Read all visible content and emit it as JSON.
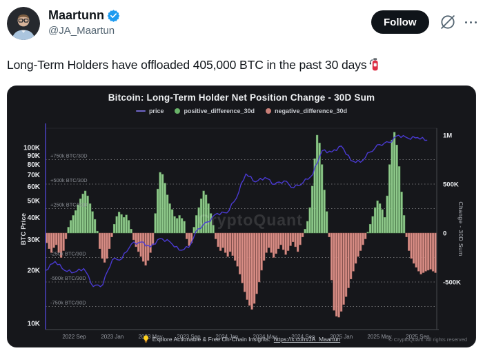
{
  "tweet": {
    "display_name": "Maartunn",
    "handle": "@JA_Maartun",
    "verified": true,
    "follow_label": "Follow",
    "body_text": "Long-Term Holders have offloaded 405,000 BTC in the past 30 days",
    "body_emoji": "fire-extinguisher"
  },
  "chart_data": {
    "type": "bar+line combo (bars on right axis, log price line on left axis)",
    "title": "Bitcoin: Long-Term Holder Net Position Change - 30D Sum",
    "watermark": "CryptoQuant",
    "colors": {
      "price": "#4a3ad2",
      "price_legend": "#6f66c9",
      "positive": "#8fc98b",
      "positive_edge": "#5f995c",
      "positive_legend": "#69b369",
      "negative": "#d88d85",
      "negative_edge": "#a5655e",
      "negative_legend": "#c97f78",
      "axis_left": "#4a40c0",
      "background": "#16171b"
    },
    "legend": [
      {
        "label": "price",
        "marker": "line"
      },
      {
        "label": "positive_difference_30d",
        "marker": "dot"
      },
      {
        "label": "negative_difference_30d",
        "marker": "dot"
      }
    ],
    "left_axis": {
      "label": "BTC Price",
      "scale": "log",
      "ticks": [
        {
          "label": "100K",
          "v": 100
        },
        {
          "label": "90K",
          "v": 90
        },
        {
          "label": "80K",
          "v": 80
        },
        {
          "label": "70K",
          "v": 70
        },
        {
          "label": "60K",
          "v": 60
        },
        {
          "label": "50K",
          "v": 50
        },
        {
          "label": "40K",
          "v": 40
        },
        {
          "label": "30K",
          "v": 30
        },
        {
          "label": "20K",
          "v": 20
        },
        {
          "label": "10K",
          "v": 10
        }
      ]
    },
    "right_axis": {
      "label": "Change - 30D Sum",
      "ticks": [
        {
          "label": "1M",
          "v": 1000
        },
        {
          "label": "500K",
          "v": 500
        },
        {
          "label": "0",
          "v": 0
        },
        {
          "label": "-500K",
          "v": -500
        }
      ]
    },
    "guides": [
      {
        "label": "+750k BTC/30D",
        "v": 750
      },
      {
        "label": "+500k BTC/30D",
        "v": 500
      },
      {
        "label": "+250k BTC/30D",
        "v": 250
      },
      {
        "label": "-250k BTC/30D",
        "v": -250
      },
      {
        "label": "-500k BTC/30D",
        "v": -500
      },
      {
        "label": "-750k BTC/30D",
        "v": -750
      }
    ],
    "x_axis": {
      "start_month": "2022-06",
      "months_total": 41,
      "ticks": [
        {
          "label": "2022 Sep",
          "m": 3
        },
        {
          "label": "2023 Jan",
          "m": 7
        },
        {
          "label": "2023 May",
          "m": 11
        },
        {
          "label": "2023 Sep",
          "m": 15
        },
        {
          "label": "2024 Jan",
          "m": 19
        },
        {
          "label": "2024 May",
          "m": 23
        },
        {
          "label": "2024 Sep",
          "m": 27
        },
        {
          "label": "2025 Jan",
          "m": 31
        },
        {
          "label": "2025 May",
          "m": 35
        },
        {
          "label": "2025 Sep",
          "m": 39
        }
      ]
    },
    "price_monthly_kusd": [
      20.0,
      22.5,
      20.0,
      19.5,
      20.5,
      16.2,
      16.6,
      23.0,
      23.3,
      28.3,
      29.0,
      27.2,
      30.4,
      29.2,
      26.1,
      27.0,
      34.5,
      37.7,
      42.2,
      42.5,
      51.5,
      70.8,
      63.8,
      67.5,
      61.8,
      64.6,
      59.0,
      63.3,
      70.2,
      96.0,
      94.4,
      102.0,
      84.4,
      82.5,
      94.2,
      104.0,
      107.0,
      117.5,
      113.0,
      114.0,
      110.0
    ],
    "bars_per_month": 4,
    "bars_kbtc_per_30d": [
      -100,
      -160,
      -200,
      -150,
      -120,
      -200,
      -250,
      -180,
      -60,
      60,
      130,
      180,
      230,
      290,
      350,
      400,
      430,
      380,
      300,
      220,
      140,
      20,
      -160,
      -260,
      -300,
      -260,
      -160,
      -40,
      90,
      170,
      215,
      190,
      160,
      185,
      130,
      40,
      -70,
      -140,
      -190,
      -240,
      -290,
      -330,
      -280,
      -200,
      -120,
      200,
      450,
      620,
      600,
      510,
      390,
      300,
      240,
      170,
      150,
      180,
      150,
      120,
      -60,
      -130,
      -100,
      60,
      180,
      260,
      350,
      430,
      390,
      300,
      200,
      80,
      -60,
      -140,
      -180,
      -150,
      -200,
      -240,
      -190,
      -230,
      -280,
      -340,
      -420,
      -510,
      -600,
      -680,
      -740,
      -780,
      -720,
      -620,
      -500,
      -380,
      -280,
      -200,
      -150,
      -200,
      -250,
      -210,
      -160,
      -120,
      -170,
      -220,
      -180,
      -130,
      -90,
      -140,
      -190,
      -120,
      -40,
      40,
      120,
      260,
      480,
      760,
      1000,
      920,
      700,
      440,
      220,
      -40,
      -480,
      -790,
      -850,
      -860,
      -800,
      -730,
      -650,
      -560,
      -470,
      -390,
      -310,
      -240,
      -180,
      -120,
      -60,
      10,
      90,
      170,
      260,
      330,
      300,
      240,
      160,
      380,
      700,
      950,
      1030,
      900,
      680,
      420,
      180,
      -40,
      -180,
      -260,
      -310,
      -350,
      -390,
      -420,
      -405,
      -390,
      -380,
      -370,
      -390,
      -405
    ],
    "footer": {
      "note": "Explore Actionable & Free On-Chain Insights:",
      "link": "https://x.com/JA_Maartun",
      "copyright": "© CryptoQuant. All rights reserved"
    }
  }
}
